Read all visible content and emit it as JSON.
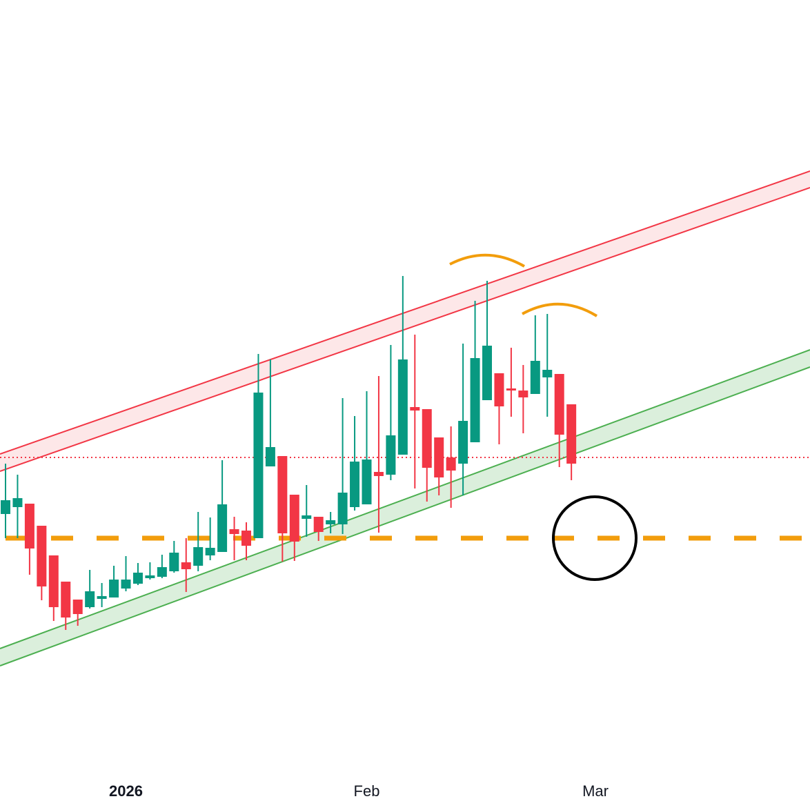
{
  "chart_data": {
    "type": "candlestick",
    "categories": [
      null,
      null,
      null,
      null,
      null,
      null,
      null,
      null,
      null,
      null,
      "2026",
      null,
      null,
      null,
      null,
      null,
      null,
      null,
      null,
      null,
      null,
      null,
      null,
      null,
      null,
      null,
      null,
      null,
      null,
      null,
      "Feb",
      null,
      null,
      null,
      null,
      null,
      null,
      null,
      null,
      null,
      null,
      null,
      null,
      null,
      null,
      null,
      null,
      null,
      null,
      "Mar"
    ],
    "open": [
      429,
      439,
      444,
      412,
      369,
      331,
      305,
      294,
      306,
      308,
      321,
      328,
      336,
      338,
      346,
      359,
      354,
      369,
      374,
      407,
      405,
      394,
      498,
      513,
      457,
      422,
      425,
      414,
      414,
      439,
      443,
      490,
      486,
      515,
      584,
      581,
      540,
      511,
      502,
      533,
      594,
      633,
      611,
      608,
      603,
      627,
      632,
      588,
      null,
      null
    ],
    "high": [
      502,
      486,
      444,
      412,
      369,
      331,
      305,
      348,
      329,
      354,
      368,
      358,
      359,
      370,
      390,
      394,
      432,
      424,
      507,
      425,
      417,
      661,
      653,
      513,
      457,
      471,
      425,
      432,
      597,
      571,
      607,
      629,
      674,
      774,
      689,
      581,
      540,
      556,
      676,
      738,
      767,
      633,
      670,
      645,
      717,
      719,
      632,
      588,
      null,
      null
    ],
    "low": [
      394,
      394,
      341,
      304,
      274,
      261,
      267,
      292,
      294,
      308,
      317,
      326,
      334,
      336,
      344,
      316,
      346,
      362,
      374,
      362,
      362,
      394,
      498,
      360,
      361,
      396,
      390,
      401,
      400,
      434,
      443,
      402,
      478,
      515,
      466,
      447,
      456,
      438,
      456,
      533,
      594,
      530,
      570,
      546,
      603,
      570,
      497,
      478,
      null,
      null
    ],
    "close": [
      449,
      452,
      379,
      324,
      294,
      279,
      284,
      317,
      310,
      334,
      334,
      344,
      340,
      352,
      373,
      349,
      381,
      380,
      443,
      400,
      383,
      605,
      526,
      401,
      389,
      427,
      403,
      420,
      460,
      505,
      508,
      484,
      543,
      653,
      579,
      496,
      482,
      492,
      564,
      655,
      673,
      585,
      608,
      598,
      651,
      638,
      544,
      502,
      null,
      null
    ],
    "up_color": "#089981",
    "down_color": "#f23645",
    "ylim": [
      0,
      1174
    ]
  }
}
